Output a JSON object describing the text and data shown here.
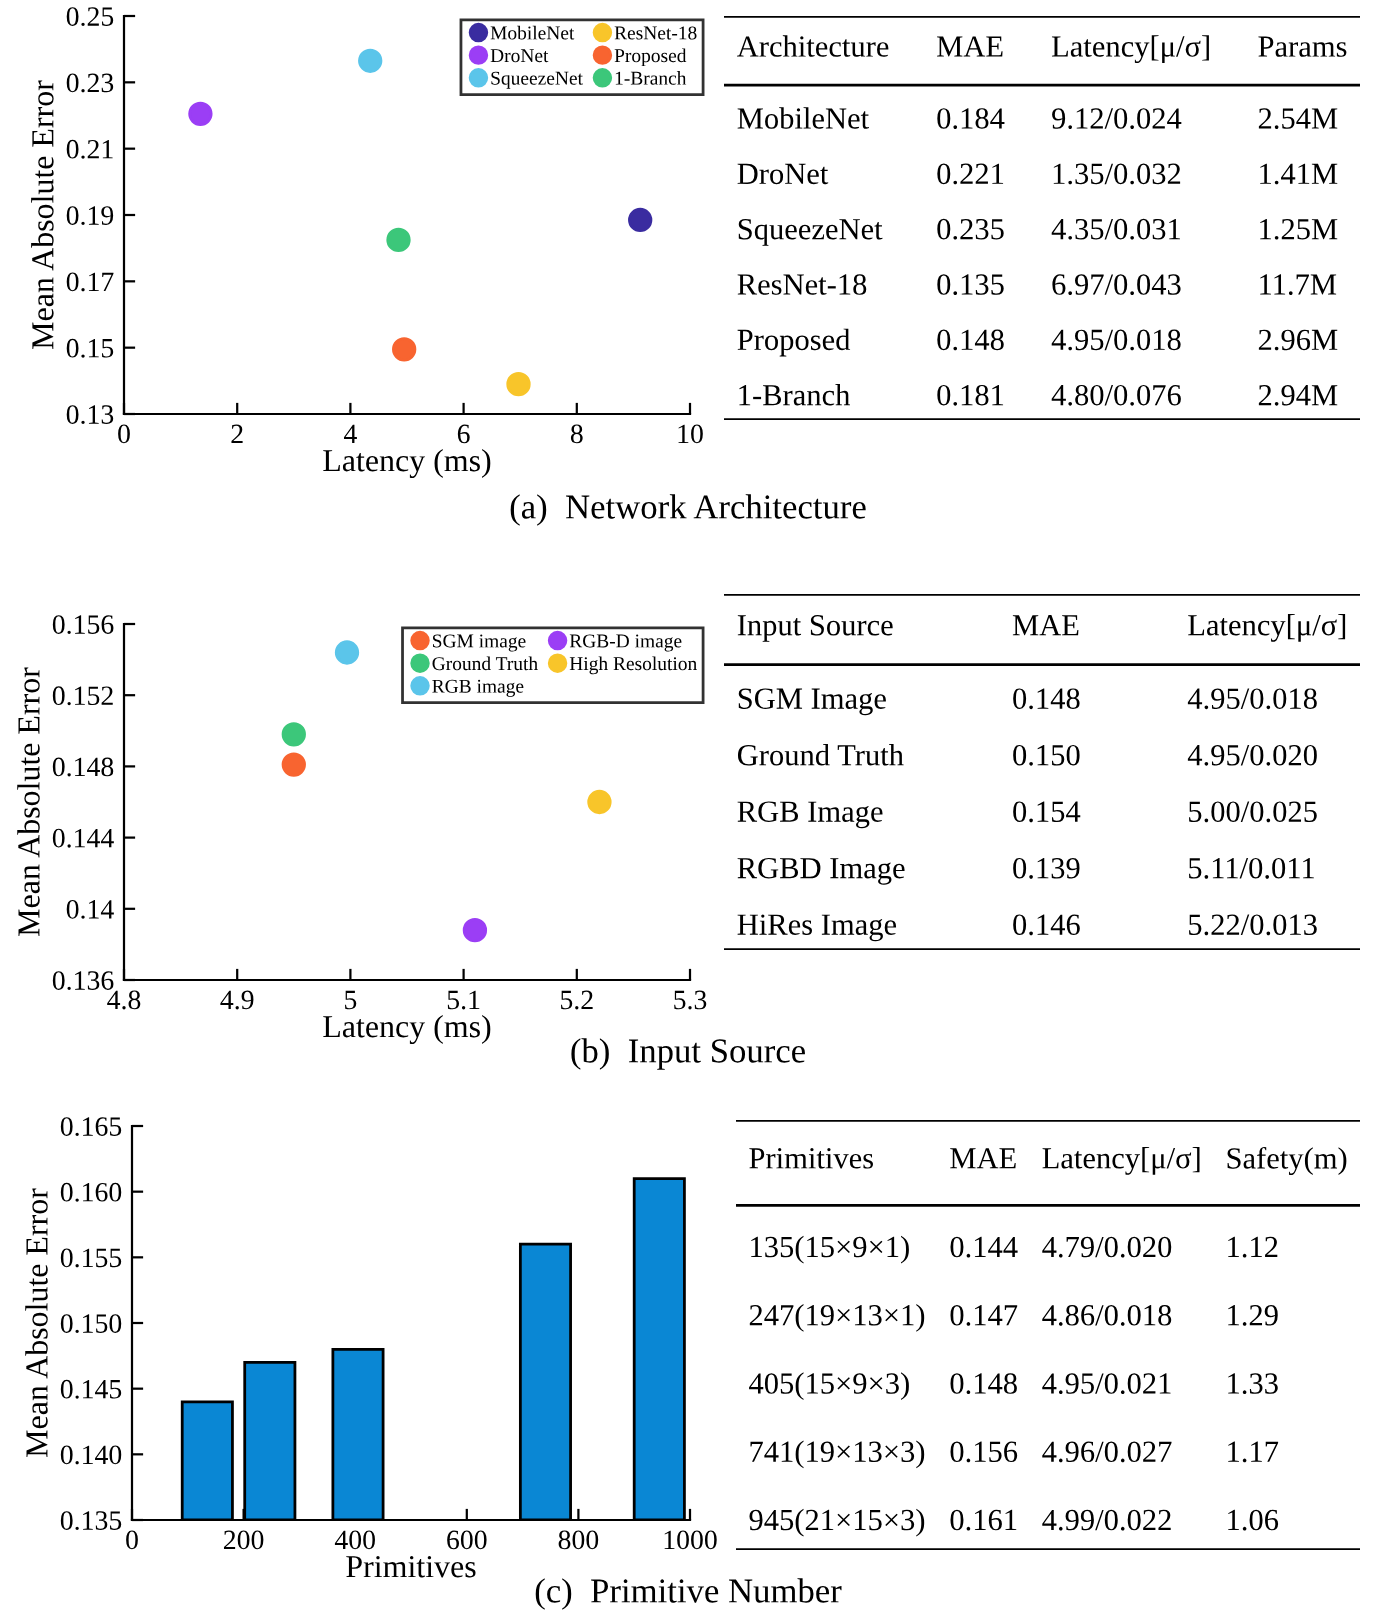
{
  "chart_data": [
    {
      "type": "scatter",
      "xlabel": "Latency (ms)",
      "ylabel": "Mean Absolute Error",
      "xlim": [
        0,
        10
      ],
      "xticks": [
        0,
        2,
        4,
        6,
        8,
        10
      ],
      "ylim": [
        0.13,
        0.25
      ],
      "yticks": [
        0.13,
        0.15,
        0.17,
        0.19,
        0.21,
        0.23,
        0.25
      ],
      "legend": "top right",
      "marker": "circle",
      "grid": false,
      "series": [
        {
          "name": "MobileNet",
          "color": "#3a2ca0",
          "x": [
            9.12
          ],
          "values": [
            0.1885
          ]
        },
        {
          "name": "DroNet",
          "color": "#9b3ef5",
          "x": [
            1.35
          ],
          "values": [
            0.2205
          ]
        },
        {
          "name": "SqueezeNet",
          "color": "#5bc5ea",
          "x": [
            4.35
          ],
          "values": [
            0.2365
          ]
        },
        {
          "name": "ResNet-18",
          "color": "#f8c52a",
          "x": [
            6.97
          ],
          "values": [
            0.139
          ]
        },
        {
          "name": "Proposed",
          "color": "#f86430",
          "x": [
            4.95
          ],
          "values": [
            0.1495
          ]
        },
        {
          "name": "1-Branch",
          "color": "#3cc77a",
          "x": [
            4.85
          ],
          "values": [
            0.1825
          ]
        }
      ],
      "annotations": [
        "(a)  Network Architecture"
      ]
    },
    {
      "type": "other",
      "categories": [
        "Architecture",
        "MAE",
        "Latency[μ/σ]",
        "Params"
      ],
      "annotations": [
        "MobileNet",
        "0.184",
        "9.12/0.024",
        "2.54M",
        "DroNet",
        "0.221",
        "1.35/0.032",
        "1.41M",
        "SqueezeNet",
        "0.235",
        "4.35/0.031",
        "1.25M",
        "ResNet-18",
        "0.135",
        "6.97/0.043",
        "11.7M",
        "Proposed",
        "0.148",
        "4.95/0.018",
        "2.96M",
        "1-Branch",
        "0.181",
        "4.80/0.076",
        "2.94M"
      ]
    },
    {
      "type": "scatter",
      "xlabel": "Latency (ms)",
      "ylabel": "Mean Absolute Error",
      "xlim": [
        4.8,
        5.3
      ],
      "xticks": [
        4.8,
        4.9,
        {
          "value": 5,
          "label": "5"
        },
        5.1,
        5.2,
        5.3
      ],
      "ylim": [
        0.136,
        0.156
      ],
      "yticks": [
        0.136,
        0.14,
        0.144,
        0.148,
        0.152,
        0.156
      ],
      "legend": "top right",
      "marker": "circle",
      "grid": false,
      "series": [
        {
          "name": "SGM image",
          "color": "#f86430",
          "x": [
            4.95
          ],
          "values": [
            0.1481
          ]
        },
        {
          "name": "Ground Truth",
          "color": "#3cc77a",
          "x": [
            4.95
          ],
          "values": [
            0.1498
          ]
        },
        {
          "name": "RGB image",
          "color": "#5bc5ea",
          "x": [
            4.997
          ],
          "values": [
            0.1544
          ]
        },
        {
          "name": "RGB-D image",
          "color": "#9b3ef5",
          "x": [
            5.11
          ],
          "values": [
            0.1388
          ]
        },
        {
          "name": "High Resolution",
          "color": "#f8c52a",
          "x": [
            5.22
          ],
          "values": [
            0.146
          ]
        }
      ],
      "annotations": [
        "(b)  Input Source"
      ]
    },
    {
      "type": "other",
      "categories": [
        "Input Source",
        "MAE",
        "Latency[μ/σ]"
      ],
      "annotations": [
        "SGM Image",
        "0.148",
        "4.95/0.018",
        "Ground Truth",
        "0.150",
        "4.95/0.020",
        "RGB Image",
        "0.154",
        "5.00/0.025",
        "RGBD Image",
        "0.139",
        "5.11/0.011",
        "HiRes Image",
        "0.146",
        "5.22/0.013"
      ]
    },
    {
      "type": "bar",
      "xlabel": "Primitives",
      "ylabel": "Mean Absolute Error",
      "x": [
        135,
        247,
        405,
        741,
        945
      ],
      "values": [
        0.144,
        0.147,
        0.148,
        0.156,
        0.161
      ],
      "color": "#0a87d4",
      "xlim": [
        0,
        1000
      ],
      "xticks": [
        0,
        200,
        400,
        600,
        800,
        1000
      ],
      "ylim": [
        0.135,
        0.165
      ],
      "yticks": [
        0.135,
        {
          "value": 0.14,
          "label": "0.140"
        },
        0.145,
        {
          "value": 0.15,
          "label": "0.150"
        },
        0.155,
        {
          "value": 0.16,
          "label": "0.160"
        },
        0.165
      ],
      "grid": false,
      "annotations": [
        "(c)  Primitive Number"
      ]
    },
    {
      "type": "other",
      "categories": [
        "Primitives",
        "MAE",
        "Latency[μ/σ]",
        "Safety(m)"
      ],
      "annotations": [
        "135(15×9×1)",
        "0.144",
        "4.79/0.020",
        "1.12",
        "247(19×13×1)",
        "0.147",
        "4.86/0.018",
        "1.29",
        "405(15×9×3)",
        "0.148",
        "4.95/0.021",
        "1.33",
        "741(19×13×3)",
        "0.156",
        "4.96/0.027",
        "1.17",
        "945(21×15×3)",
        "0.161",
        "4.99/0.022",
        "1.06"
      ]
    }
  ]
}
